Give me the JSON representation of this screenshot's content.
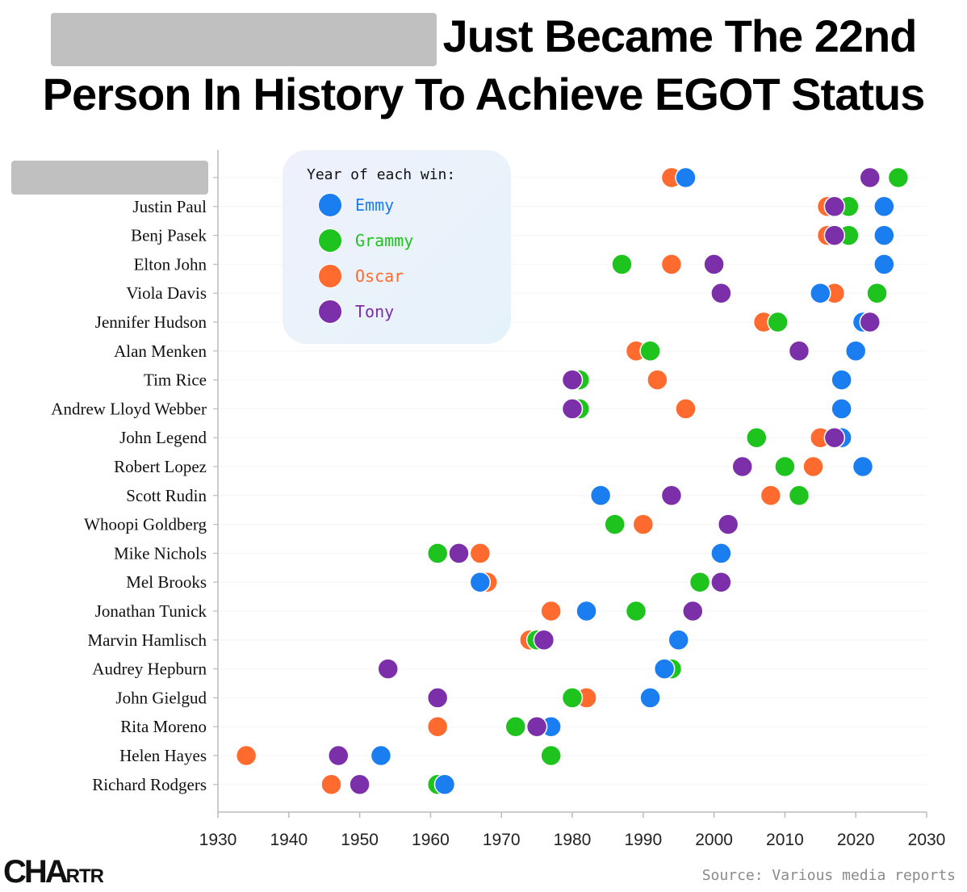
{
  "title": {
    "line1": "Just Became The 22nd",
    "line2": "Person In History To Achieve EGOT Status"
  },
  "legend": {
    "title": "Year of each win:",
    "items": [
      {
        "label": "Emmy",
        "color": "#1a7df0"
      },
      {
        "label": "Grammy",
        "color": "#1ec31e"
      },
      {
        "label": "Oscar",
        "color": "#ff6a2e"
      },
      {
        "label": "Tony",
        "color": "#7b2fa8"
      }
    ]
  },
  "source": "Source: Various media reports",
  "logo": {
    "big": "CHA",
    "small": "RTR"
  },
  "chart_data": {
    "type": "scatter",
    "xlim": [
      1930,
      2030
    ],
    "xticks": [
      1930,
      1940,
      1950,
      1960,
      1970,
      1980,
      1990,
      2000,
      2010,
      2020,
      2030
    ],
    "series_colors": {
      "Emmy": "#1a7df0",
      "Grammy": "#1ec31e",
      "Oscar": "#ff6a2e",
      "Tony": "#7b2fa8"
    },
    "people": [
      {
        "name": "",
        "redacted": true,
        "Emmy": 1996,
        "Grammy": 2026,
        "Oscar": 1994,
        "Tony": 2022
      },
      {
        "name": "Justin Paul",
        "Emmy": 2024,
        "Grammy": 2019,
        "Oscar": 2016,
        "Tony": 2017
      },
      {
        "name": "Benj Pasek",
        "Emmy": 2024,
        "Grammy": 2019,
        "Oscar": 2016,
        "Tony": 2017
      },
      {
        "name": "Elton John",
        "Emmy": 2024,
        "Grammy": 1987,
        "Oscar": 1994,
        "Tony": 2000
      },
      {
        "name": "Viola Davis",
        "Emmy": 2015,
        "Grammy": 2023,
        "Oscar": 2017,
        "Tony": 2001
      },
      {
        "name": "Jennifer Hudson",
        "Emmy": 2021,
        "Grammy": 2009,
        "Oscar": 2007,
        "Tony": 2022
      },
      {
        "name": "Alan Menken",
        "Emmy": 2020,
        "Grammy": 1991,
        "Oscar": 1989,
        "Tony": 2012
      },
      {
        "name": "Tim Rice",
        "Emmy": 2018,
        "Grammy": 1981,
        "Oscar": 1992,
        "Tony": 1980
      },
      {
        "name": "Andrew Lloyd Webber",
        "Emmy": 2018,
        "Grammy": 1981,
        "Oscar": 1996,
        "Tony": 1980
      },
      {
        "name": "John Legend",
        "Emmy": 2018,
        "Grammy": 2006,
        "Oscar": 2015,
        "Tony": 2017
      },
      {
        "name": "Robert Lopez",
        "Emmy": 2021,
        "Grammy": 2010,
        "Oscar": 2014,
        "Tony": 2004
      },
      {
        "name": "Scott Rudin",
        "Emmy": 1984,
        "Grammy": 2012,
        "Oscar": 2008,
        "Tony": 1994
      },
      {
        "name": "Whoopi Goldberg",
        "Emmy": 2002,
        "Grammy": 1986,
        "Oscar": 1990,
        "Tony": 2002
      },
      {
        "name": "Mike Nichols",
        "Emmy": 2001,
        "Grammy": 1961,
        "Oscar": 1967,
        "Tony": 1964
      },
      {
        "name": "Mel Brooks",
        "Emmy": 1967,
        "Grammy": 1998,
        "Oscar": 1968,
        "Tony": 2001
      },
      {
        "name": "Jonathan Tunick",
        "Emmy": 1982,
        "Grammy": 1989,
        "Oscar": 1977,
        "Tony": 1997
      },
      {
        "name": "Marvin Hamlisch",
        "Emmy": 1995,
        "Grammy": 1975,
        "Oscar": 1974,
        "Tony": 1976
      },
      {
        "name": "Audrey Hepburn",
        "Emmy": 1993,
        "Grammy": 1994,
        "Oscar": 1954,
        "Tony": 1954
      },
      {
        "name": "John Gielgud",
        "Emmy": 1991,
        "Grammy": 1980,
        "Oscar": 1982,
        "Tony": 1961
      },
      {
        "name": "Rita Moreno",
        "Emmy": 1977,
        "Grammy": 1972,
        "Oscar": 1961,
        "Tony": 1975
      },
      {
        "name": "Helen Hayes",
        "Emmy": 1953,
        "Grammy": 1977,
        "Oscar": 1934,
        "Tony": 1947
      },
      {
        "name": "Richard Rodgers",
        "Emmy": 1962,
        "Grammy": 1961,
        "Oscar": 1946,
        "Tony": 1950
      }
    ]
  }
}
